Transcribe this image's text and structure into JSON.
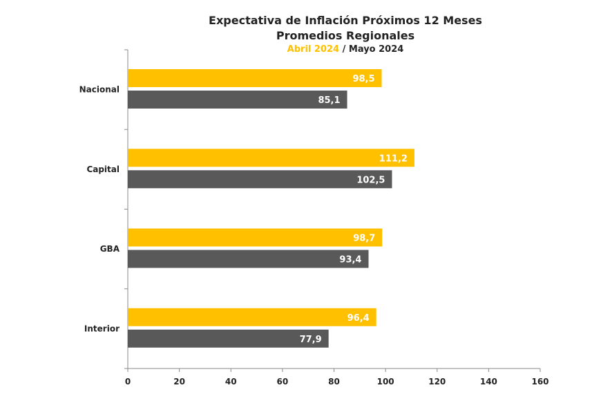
{
  "chart_data": {
    "type": "bar",
    "orientation": "horizontal",
    "title": "Expectativa de Inflación Próximos 12 Meses",
    "subtitle": "Promedios Regionales",
    "subtitle2": {
      "abril": "Abril 2024",
      "separator": " / ",
      "mayo": "Mayo 2024"
    },
    "categories": [
      "Nacional",
      "Capital",
      "GBA",
      "Interior"
    ],
    "series": [
      {
        "name": "Abril 2024",
        "color": "#FFC000",
        "values": [
          98.5,
          111.2,
          98.7,
          96.4
        ],
        "labels": [
          "98,5",
          "111,2",
          "98,7",
          "96,4"
        ]
      },
      {
        "name": "Mayo 2024",
        "color": "#595959",
        "values": [
          85.1,
          102.5,
          93.4,
          77.9
        ],
        "labels": [
          "85,1",
          "102,5",
          "93,4",
          "77,9"
        ]
      }
    ],
    "xlim": [
      0,
      160
    ],
    "xticks": [
      0,
      20,
      40,
      60,
      80,
      100,
      120,
      140,
      160
    ],
    "xlabel": "",
    "ylabel": "",
    "grid": false
  }
}
